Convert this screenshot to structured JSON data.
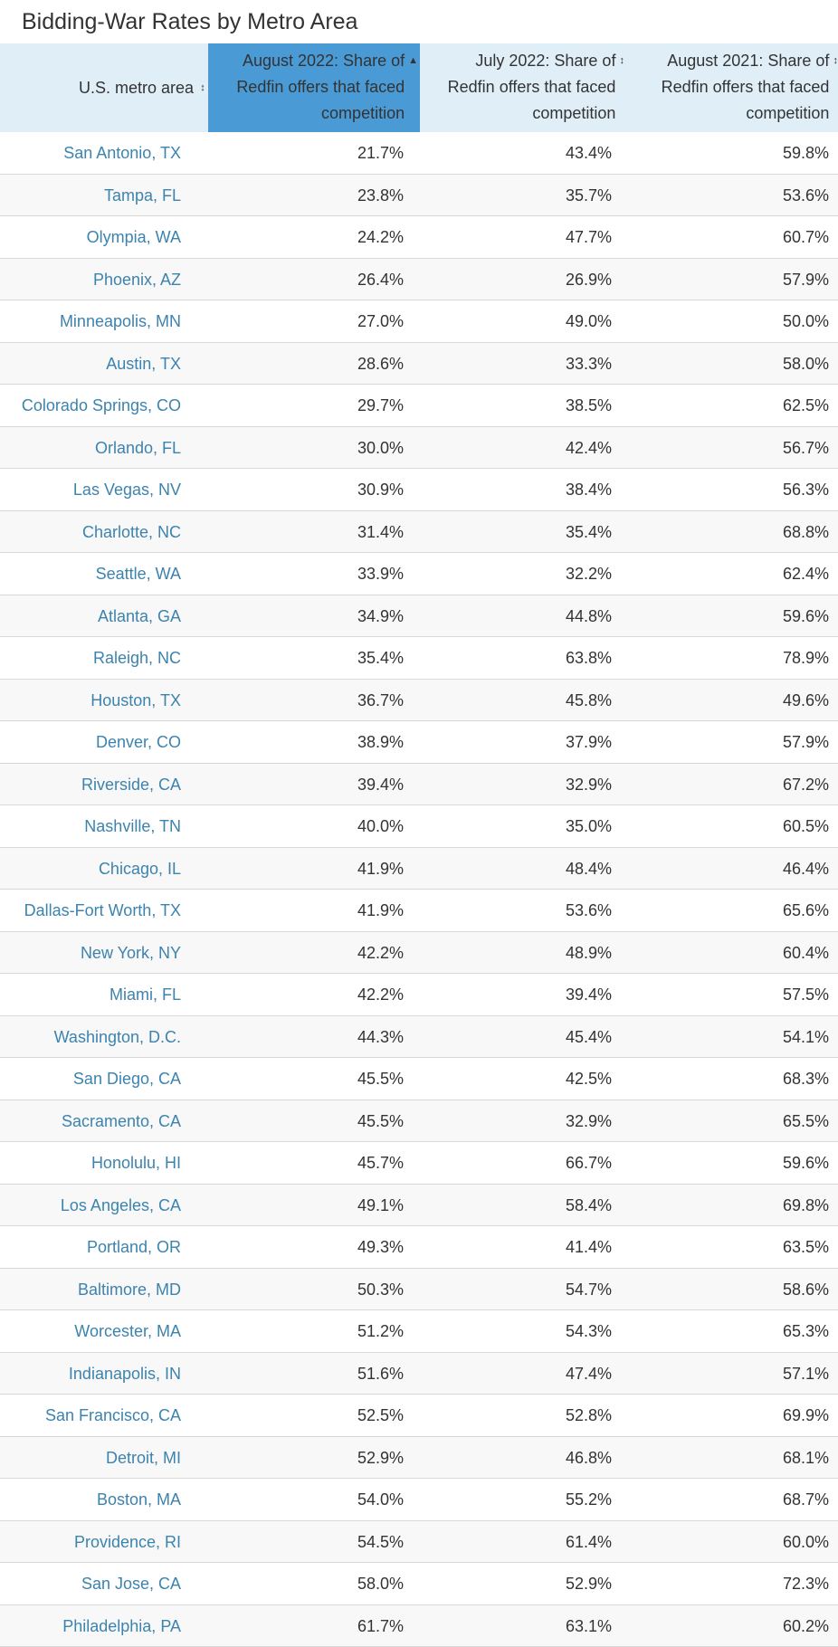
{
  "title": "Bidding-War Rates by Metro Area",
  "columns": [
    {
      "label": "U.S. metro area",
      "sort": "↕"
    },
    {
      "label": "August 2022: Share of Redfin offers that faced competition",
      "sort": "▲"
    },
    {
      "label": "July 2022: Share of Redfin offers that faced competition",
      "sort": "↕"
    },
    {
      "label": "August 2021: Share of Redfin offers that faced competition",
      "sort": "↕"
    }
  ],
  "colors": {
    "header_bg": "#e0eef8",
    "sorted_header_bg": "#4a9ad6",
    "link": "#3c83ae",
    "stripe": "#f8f8f8"
  },
  "chart_data": {
    "type": "table",
    "title": "Bidding-War Rates by Metro Area",
    "columns": [
      "U.S. metro area",
      "August 2022: Share of Redfin offers that faced competition",
      "July 2022: Share of Redfin offers that faced competition",
      "August 2021: Share of Redfin offers that faced competition"
    ],
    "sorted_by": "August 2022: Share of Redfin offers that faced competition",
    "sort_direction": "ascending",
    "rows": [
      [
        "San Antonio, TX",
        "21.7%",
        "43.4%",
        "59.8%"
      ],
      [
        "Tampa, FL",
        "23.8%",
        "35.7%",
        "53.6%"
      ],
      [
        "Olympia, WA",
        "24.2%",
        "47.7%",
        "60.7%"
      ],
      [
        "Phoenix, AZ",
        "26.4%",
        "26.9%",
        "57.9%"
      ],
      [
        "Minneapolis, MN",
        "27.0%",
        "49.0%",
        "50.0%"
      ],
      [
        "Austin, TX",
        "28.6%",
        "33.3%",
        "58.0%"
      ],
      [
        "Colorado Springs, CO",
        "29.7%",
        "38.5%",
        "62.5%"
      ],
      [
        "Orlando, FL",
        "30.0%",
        "42.4%",
        "56.7%"
      ],
      [
        "Las Vegas, NV",
        "30.9%",
        "38.4%",
        "56.3%"
      ],
      [
        "Charlotte, NC",
        "31.4%",
        "35.4%",
        "68.8%"
      ],
      [
        "Seattle, WA",
        "33.9%",
        "32.2%",
        "62.4%"
      ],
      [
        "Atlanta, GA",
        "34.9%",
        "44.8%",
        "59.6%"
      ],
      [
        "Raleigh, NC",
        "35.4%",
        "63.8%",
        "78.9%"
      ],
      [
        "Houston, TX",
        "36.7%",
        "45.8%",
        "49.6%"
      ],
      [
        "Denver, CO",
        "38.9%",
        "37.9%",
        "57.9%"
      ],
      [
        "Riverside, CA",
        "39.4%",
        "32.9%",
        "67.2%"
      ],
      [
        "Nashville, TN",
        "40.0%",
        "35.0%",
        "60.5%"
      ],
      [
        "Chicago, IL",
        "41.9%",
        "48.4%",
        "46.4%"
      ],
      [
        "Dallas-Fort Worth, TX",
        "41.9%",
        "53.6%",
        "65.6%"
      ],
      [
        "New York, NY",
        "42.2%",
        "48.9%",
        "60.4%"
      ],
      [
        "Miami, FL",
        "42.2%",
        "39.4%",
        "57.5%"
      ],
      [
        "Washington, D.C.",
        "44.3%",
        "45.4%",
        "54.1%"
      ],
      [
        "San Diego, CA",
        "45.5%",
        "42.5%",
        "68.3%"
      ],
      [
        "Sacramento, CA",
        "45.5%",
        "32.9%",
        "65.5%"
      ],
      [
        "Honolulu, HI",
        "45.7%",
        "66.7%",
        "59.6%"
      ],
      [
        "Los Angeles, CA",
        "49.1%",
        "58.4%",
        "69.8%"
      ],
      [
        "Portland, OR",
        "49.3%",
        "41.4%",
        "63.5%"
      ],
      [
        "Baltimore, MD",
        "50.3%",
        "54.7%",
        "58.6%"
      ],
      [
        "Worcester, MA",
        "51.2%",
        "54.3%",
        "65.3%"
      ],
      [
        "Indianapolis, IN",
        "51.6%",
        "47.4%",
        "57.1%"
      ],
      [
        "San Francisco, CA",
        "52.5%",
        "52.8%",
        "69.9%"
      ],
      [
        "Detroit, MI",
        "52.9%",
        "46.8%",
        "68.1%"
      ],
      [
        "Boston, MA",
        "54.0%",
        "55.2%",
        "68.7%"
      ],
      [
        "Providence, RI",
        "54.5%",
        "61.4%",
        "60.0%"
      ],
      [
        "San Jose, CA",
        "58.0%",
        "52.9%",
        "72.3%"
      ],
      [
        "Philadelphia, PA",
        "61.7%",
        "63.1%",
        "60.2%"
      ]
    ]
  }
}
